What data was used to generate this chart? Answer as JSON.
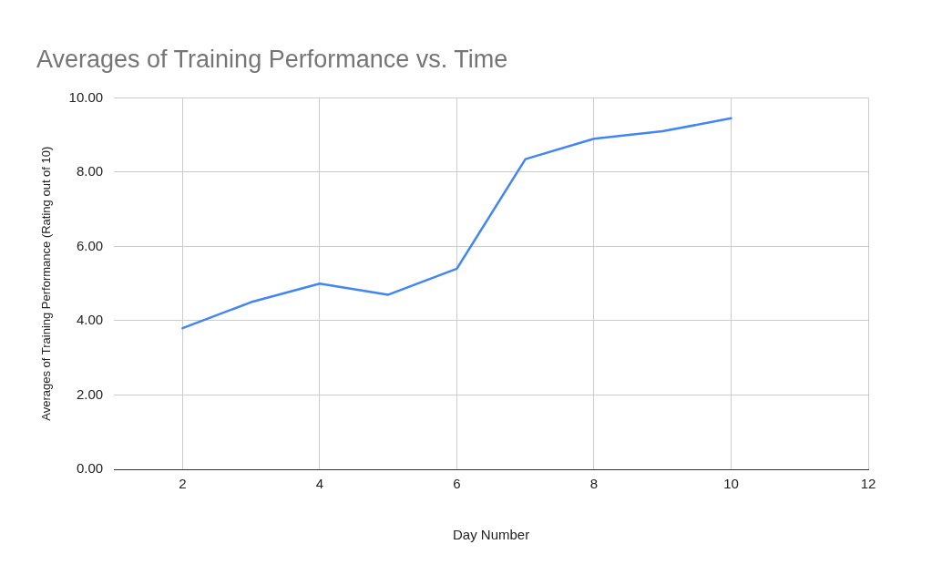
{
  "chart_data": {
    "type": "line",
    "title": "Averages of Training Performance vs. Time",
    "xlabel": "Day Number",
    "ylabel": "Averages of Training Performance (Rating out of 10)",
    "x": [
      2,
      3,
      4,
      5,
      6,
      7,
      8,
      9,
      10
    ],
    "series": [
      {
        "color": "#4285f4",
        "values": [
          3.8,
          4.5,
          5.0,
          4.7,
          5.4,
          8.35,
          8.9,
          9.1,
          9.45
        ]
      }
    ],
    "xlim": [
      1,
      12
    ],
    "xticks": [
      2,
      4,
      6,
      8,
      10,
      12
    ],
    "ylim": [
      0,
      10
    ],
    "yticks": [
      {
        "value": 0,
        "label": "0.00"
      },
      {
        "value": 2,
        "label": "2.00"
      },
      {
        "value": 4,
        "label": "4.00"
      },
      {
        "value": 6,
        "label": "6.00"
      },
      {
        "value": 8,
        "label": "8.00"
      },
      {
        "value": 10,
        "label": "10.00"
      }
    ],
    "grid": true,
    "legend": false,
    "marker": "none",
    "line_style": "solid"
  }
}
